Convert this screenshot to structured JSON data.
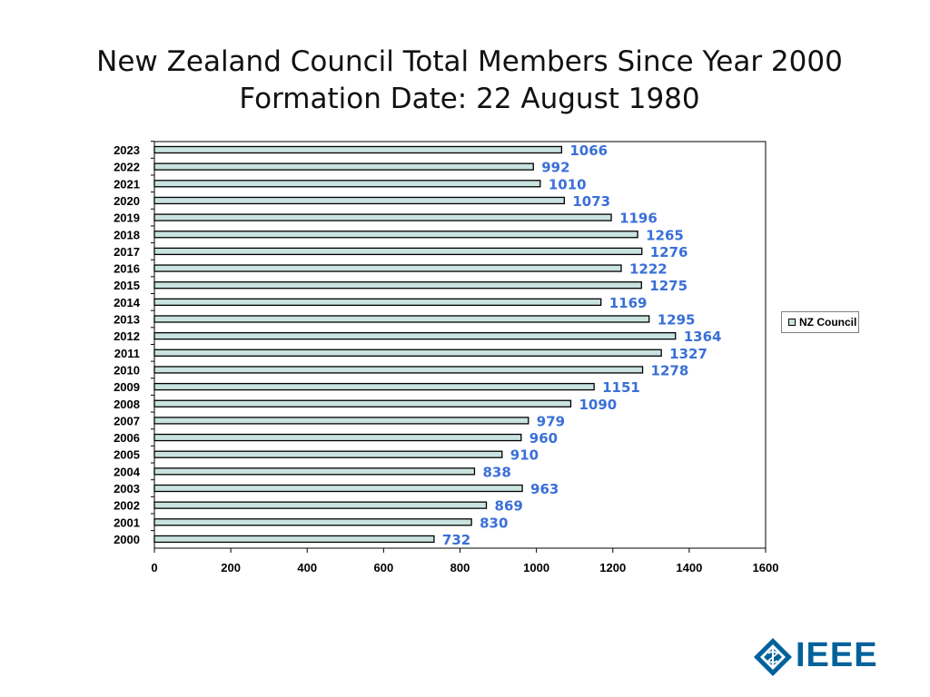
{
  "title": {
    "line1": "New Zealand Council Total Members Since Year 2000",
    "line2": "Formation Date: 22 August 1980"
  },
  "legend": {
    "label": "NZ Council"
  },
  "logo": {
    "text": "IEEE"
  },
  "colors": {
    "bar_fill": "#c9e3e0",
    "bar_border": "#000000",
    "data_label": "#3a6fd8",
    "logo": "#00629b"
  },
  "chart_data": {
    "type": "bar",
    "orientation": "horizontal",
    "categories": [
      "2023",
      "2022",
      "2021",
      "2020",
      "2019",
      "2018",
      "2017",
      "2016",
      "2015",
      "2014",
      "2013",
      "2012",
      "2011",
      "2010",
      "2009",
      "2008",
      "2007",
      "2006",
      "2005",
      "2004",
      "2003",
      "2002",
      "2001",
      "2000"
    ],
    "series": [
      {
        "name": "NZ Council",
        "values": [
          1066,
          992,
          1010,
          1073,
          1196,
          1265,
          1276,
          1222,
          1275,
          1169,
          1295,
          1364,
          1327,
          1278,
          1151,
          1090,
          979,
          960,
          910,
          838,
          963,
          869,
          830,
          732
        ]
      }
    ],
    "xlim": [
      0,
      1600
    ],
    "xticks": [
      0,
      200,
      400,
      600,
      800,
      1000,
      1200,
      1400,
      1600
    ],
    "grid": false,
    "legend_position": "right"
  }
}
